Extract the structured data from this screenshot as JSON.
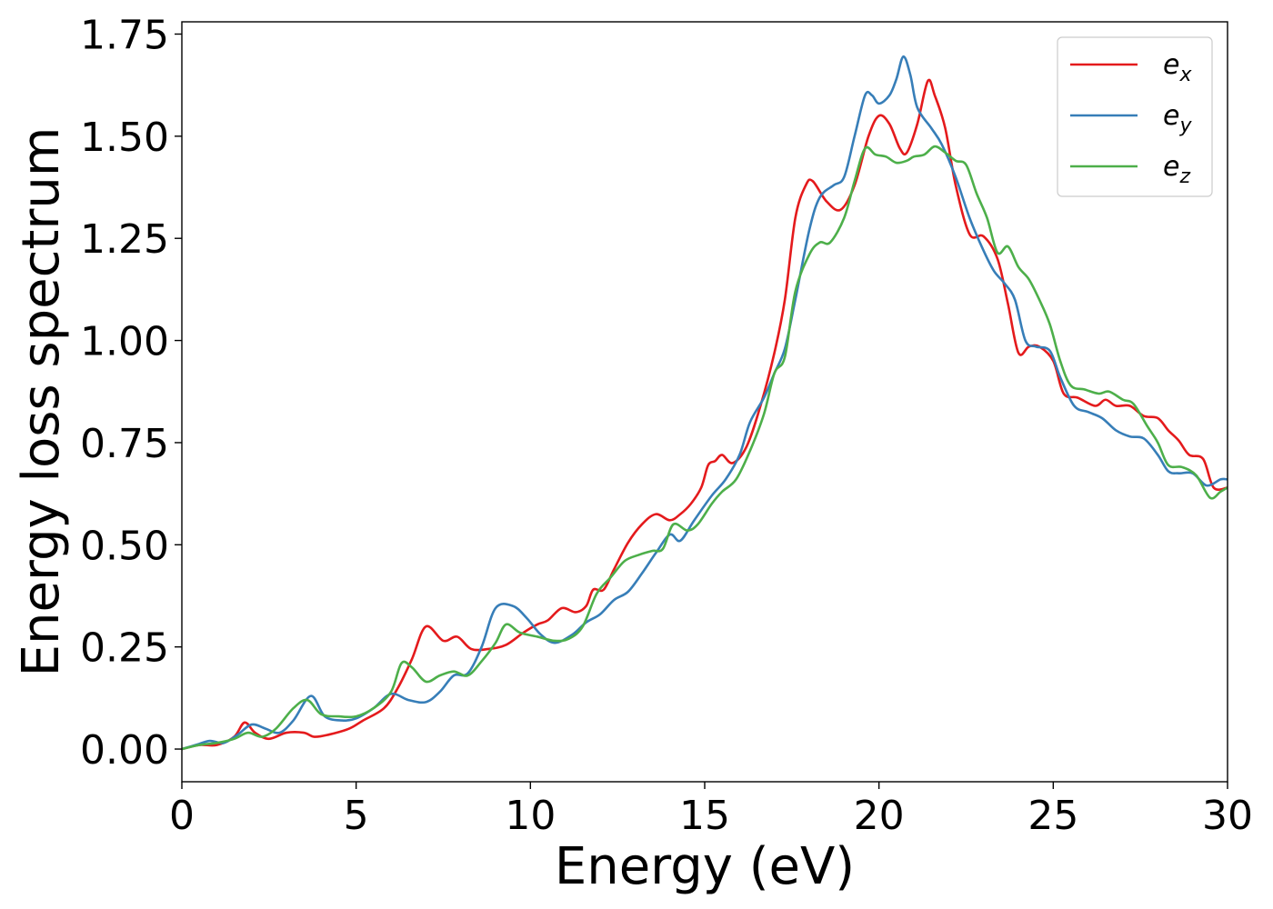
{
  "chart_data": {
    "type": "line",
    "xlabel": "Energy (eV)",
    "ylabel": "Energy loss spectrum",
    "xlim": [
      0,
      30
    ],
    "ylim": [
      -0.08,
      1.78
    ],
    "x_ticks": [
      0,
      5,
      10,
      15,
      20,
      25,
      30
    ],
    "y_ticks": [
      0.0,
      0.25,
      0.5,
      0.75,
      1.0,
      1.25,
      1.5,
      1.75
    ],
    "x_tick_labels": [
      "0",
      "5",
      "10",
      "15",
      "20",
      "25",
      "30"
    ],
    "y_tick_labels": [
      "0.00",
      "0.25",
      "0.50",
      "0.75",
      "1.00",
      "1.25",
      "1.50",
      "1.75"
    ],
    "grid": false,
    "legend_position": "top-right",
    "series": [
      {
        "name": "e_x",
        "legend_base": "e",
        "legend_sub": "x",
        "color": "#e41a1c",
        "points": [
          [
            0,
            0.0
          ],
          [
            0.5,
            0.01
          ],
          [
            1.0,
            0.01
          ],
          [
            1.5,
            0.03
          ],
          [
            1.8,
            0.065
          ],
          [
            2.1,
            0.04
          ],
          [
            2.5,
            0.025
          ],
          [
            3.0,
            0.04
          ],
          [
            3.5,
            0.04
          ],
          [
            3.8,
            0.03
          ],
          [
            4.2,
            0.035
          ],
          [
            4.8,
            0.05
          ],
          [
            5.2,
            0.07
          ],
          [
            5.8,
            0.1
          ],
          [
            6.2,
            0.15
          ],
          [
            6.6,
            0.22
          ],
          [
            7.0,
            0.3
          ],
          [
            7.5,
            0.265
          ],
          [
            7.9,
            0.275
          ],
          [
            8.3,
            0.245
          ],
          [
            8.8,
            0.245
          ],
          [
            9.3,
            0.255
          ],
          [
            9.8,
            0.285
          ],
          [
            10.2,
            0.305
          ],
          [
            10.5,
            0.315
          ],
          [
            10.9,
            0.345
          ],
          [
            11.3,
            0.335
          ],
          [
            11.6,
            0.35
          ],
          [
            11.8,
            0.39
          ],
          [
            12.1,
            0.39
          ],
          [
            12.4,
            0.44
          ],
          [
            12.8,
            0.505
          ],
          [
            13.2,
            0.55
          ],
          [
            13.6,
            0.575
          ],
          [
            14.0,
            0.56
          ],
          [
            14.3,
            0.575
          ],
          [
            14.6,
            0.6
          ],
          [
            14.9,
            0.64
          ],
          [
            15.1,
            0.695
          ],
          [
            15.3,
            0.705
          ],
          [
            15.5,
            0.72
          ],
          [
            15.8,
            0.7
          ],
          [
            16.2,
            0.74
          ],
          [
            16.6,
            0.84
          ],
          [
            17.0,
            0.97
          ],
          [
            17.3,
            1.1
          ],
          [
            17.6,
            1.3
          ],
          [
            17.9,
            1.38
          ],
          [
            18.1,
            1.39
          ],
          [
            18.5,
            1.34
          ],
          [
            18.9,
            1.32
          ],
          [
            19.3,
            1.38
          ],
          [
            19.7,
            1.5
          ],
          [
            20.0,
            1.55
          ],
          [
            20.3,
            1.53
          ],
          [
            20.6,
            1.47
          ],
          [
            20.8,
            1.46
          ],
          [
            21.1,
            1.53
          ],
          [
            21.4,
            1.635
          ],
          [
            21.6,
            1.6
          ],
          [
            21.9,
            1.52
          ],
          [
            22.2,
            1.38
          ],
          [
            22.6,
            1.26
          ],
          [
            23.0,
            1.255
          ],
          [
            23.4,
            1.2
          ],
          [
            23.7,
            1.09
          ],
          [
            24.0,
            0.97
          ],
          [
            24.3,
            0.985
          ],
          [
            24.6,
            0.985
          ],
          [
            25.0,
            0.95
          ],
          [
            25.3,
            0.87
          ],
          [
            25.7,
            0.86
          ],
          [
            26.2,
            0.84
          ],
          [
            26.5,
            0.855
          ],
          [
            26.8,
            0.84
          ],
          [
            27.2,
            0.84
          ],
          [
            27.6,
            0.815
          ],
          [
            28.0,
            0.81
          ],
          [
            28.3,
            0.78
          ],
          [
            28.6,
            0.755
          ],
          [
            28.9,
            0.72
          ],
          [
            29.3,
            0.71
          ],
          [
            29.6,
            0.64
          ],
          [
            30.0,
            0.64
          ]
        ]
      },
      {
        "name": "e_y",
        "legend_base": "e",
        "legend_sub": "y",
        "color": "#377eb8",
        "points": [
          [
            0,
            0.0
          ],
          [
            0.4,
            0.01
          ],
          [
            0.8,
            0.02
          ],
          [
            1.2,
            0.015
          ],
          [
            1.6,
            0.035
          ],
          [
            2.0,
            0.06
          ],
          [
            2.4,
            0.05
          ],
          [
            2.8,
            0.04
          ],
          [
            3.2,
            0.07
          ],
          [
            3.7,
            0.13
          ],
          [
            4.1,
            0.08
          ],
          [
            4.6,
            0.07
          ],
          [
            5.0,
            0.075
          ],
          [
            5.5,
            0.1
          ],
          [
            6.0,
            0.135
          ],
          [
            6.5,
            0.12
          ],
          [
            7.0,
            0.115
          ],
          [
            7.4,
            0.14
          ],
          [
            7.8,
            0.18
          ],
          [
            8.2,
            0.185
          ],
          [
            8.6,
            0.25
          ],
          [
            9.0,
            0.345
          ],
          [
            9.5,
            0.35
          ],
          [
            9.9,
            0.32
          ],
          [
            10.3,
            0.28
          ],
          [
            10.7,
            0.26
          ],
          [
            11.2,
            0.28
          ],
          [
            11.6,
            0.31
          ],
          [
            12.0,
            0.33
          ],
          [
            12.4,
            0.365
          ],
          [
            12.8,
            0.385
          ],
          [
            13.2,
            0.43
          ],
          [
            13.6,
            0.48
          ],
          [
            14.0,
            0.525
          ],
          [
            14.3,
            0.51
          ],
          [
            14.7,
            0.56
          ],
          [
            15.2,
            0.62
          ],
          [
            15.6,
            0.66
          ],
          [
            16.0,
            0.72
          ],
          [
            16.3,
            0.8
          ],
          [
            16.7,
            0.86
          ],
          [
            17.0,
            0.92
          ],
          [
            17.3,
            0.98
          ],
          [
            17.6,
            1.1
          ],
          [
            18.0,
            1.27
          ],
          [
            18.3,
            1.35
          ],
          [
            18.7,
            1.38
          ],
          [
            19.0,
            1.4
          ],
          [
            19.3,
            1.5
          ],
          [
            19.6,
            1.6
          ],
          [
            19.8,
            1.6
          ],
          [
            20.0,
            1.58
          ],
          [
            20.3,
            1.6
          ],
          [
            20.5,
            1.64
          ],
          [
            20.7,
            1.695
          ],
          [
            20.9,
            1.65
          ],
          [
            21.1,
            1.57
          ],
          [
            21.5,
            1.52
          ],
          [
            21.8,
            1.48
          ],
          [
            22.2,
            1.4
          ],
          [
            22.6,
            1.3
          ],
          [
            23.0,
            1.22
          ],
          [
            23.3,
            1.17
          ],
          [
            23.6,
            1.14
          ],
          [
            23.9,
            1.1
          ],
          [
            24.2,
            1.0
          ],
          [
            24.5,
            0.985
          ],
          [
            24.9,
            0.975
          ],
          [
            25.2,
            0.91
          ],
          [
            25.6,
            0.84
          ],
          [
            26.0,
            0.825
          ],
          [
            26.4,
            0.81
          ],
          [
            26.8,
            0.78
          ],
          [
            27.2,
            0.765
          ],
          [
            27.6,
            0.76
          ],
          [
            28.0,
            0.72
          ],
          [
            28.3,
            0.68
          ],
          [
            28.6,
            0.675
          ],
          [
            29.0,
            0.675
          ],
          [
            29.4,
            0.645
          ],
          [
            29.8,
            0.66
          ],
          [
            30.0,
            0.66
          ]
        ]
      },
      {
        "name": "e_z",
        "legend_base": "e",
        "legend_sub": "z",
        "color": "#4daf4a",
        "points": [
          [
            0,
            0.0
          ],
          [
            0.5,
            0.01
          ],
          [
            1.0,
            0.015
          ],
          [
            1.5,
            0.025
          ],
          [
            1.9,
            0.04
          ],
          [
            2.3,
            0.03
          ],
          [
            2.7,
            0.05
          ],
          [
            3.2,
            0.1
          ],
          [
            3.6,
            0.12
          ],
          [
            4.0,
            0.085
          ],
          [
            4.5,
            0.08
          ],
          [
            5.0,
            0.08
          ],
          [
            5.5,
            0.1
          ],
          [
            6.0,
            0.14
          ],
          [
            6.3,
            0.21
          ],
          [
            6.6,
            0.2
          ],
          [
            7.0,
            0.165
          ],
          [
            7.4,
            0.18
          ],
          [
            7.8,
            0.19
          ],
          [
            8.2,
            0.18
          ],
          [
            8.6,
            0.215
          ],
          [
            9.0,
            0.26
          ],
          [
            9.3,
            0.305
          ],
          [
            9.7,
            0.285
          ],
          [
            10.2,
            0.275
          ],
          [
            10.7,
            0.265
          ],
          [
            11.1,
            0.27
          ],
          [
            11.5,
            0.3
          ],
          [
            11.9,
            0.38
          ],
          [
            12.3,
            0.42
          ],
          [
            12.7,
            0.46
          ],
          [
            13.1,
            0.475
          ],
          [
            13.5,
            0.485
          ],
          [
            13.8,
            0.49
          ],
          [
            14.1,
            0.55
          ],
          [
            14.5,
            0.535
          ],
          [
            14.8,
            0.55
          ],
          [
            15.2,
            0.6
          ],
          [
            15.5,
            0.63
          ],
          [
            15.9,
            0.66
          ],
          [
            16.3,
            0.73
          ],
          [
            16.7,
            0.82
          ],
          [
            17.0,
            0.92
          ],
          [
            17.3,
            0.96
          ],
          [
            17.6,
            1.12
          ],
          [
            18.0,
            1.21
          ],
          [
            18.3,
            1.24
          ],
          [
            18.6,
            1.24
          ],
          [
            19.0,
            1.3
          ],
          [
            19.3,
            1.39
          ],
          [
            19.6,
            1.47
          ],
          [
            19.9,
            1.455
          ],
          [
            20.2,
            1.45
          ],
          [
            20.5,
            1.435
          ],
          [
            20.8,
            1.44
          ],
          [
            21.0,
            1.45
          ],
          [
            21.3,
            1.455
          ],
          [
            21.6,
            1.475
          ],
          [
            21.9,
            1.46
          ],
          [
            22.2,
            1.44
          ],
          [
            22.5,
            1.43
          ],
          [
            22.8,
            1.36
          ],
          [
            23.1,
            1.3
          ],
          [
            23.4,
            1.215
          ],
          [
            23.7,
            1.23
          ],
          [
            24.0,
            1.18
          ],
          [
            24.3,
            1.15
          ],
          [
            24.6,
            1.1
          ],
          [
            24.9,
            1.04
          ],
          [
            25.2,
            0.95
          ],
          [
            25.5,
            0.89
          ],
          [
            25.9,
            0.88
          ],
          [
            26.3,
            0.87
          ],
          [
            26.6,
            0.875
          ],
          [
            27.0,
            0.855
          ],
          [
            27.3,
            0.845
          ],
          [
            27.7,
            0.79
          ],
          [
            28.0,
            0.75
          ],
          [
            28.3,
            0.695
          ],
          [
            28.7,
            0.69
          ],
          [
            29.1,
            0.67
          ],
          [
            29.5,
            0.615
          ],
          [
            29.8,
            0.63
          ],
          [
            30.0,
            0.64
          ]
        ]
      }
    ]
  }
}
